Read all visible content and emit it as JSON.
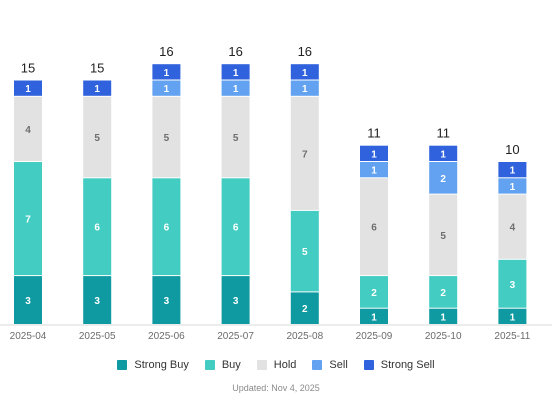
{
  "chart_data": {
    "type": "bar",
    "stacked": true,
    "categories": [
      "2025-04",
      "2025-05",
      "2025-06",
      "2025-07",
      "2025-08",
      "2025-09",
      "2025-10",
      "2025-11"
    ],
    "totals": [
      15,
      15,
      16,
      16,
      16,
      11,
      11,
      10
    ],
    "series": [
      {
        "name": "Strong Buy",
        "color": "#0e9aa0",
        "label_color": "#ffffff",
        "values": [
          3,
          3,
          3,
          3,
          2,
          1,
          1,
          1
        ]
      },
      {
        "name": "Buy",
        "color": "#43ccc2",
        "label_color": "#ffffff",
        "values": [
          7,
          6,
          6,
          6,
          5,
          2,
          2,
          3
        ]
      },
      {
        "name": "Hold",
        "color": "#e2e2e2",
        "label_color": "#6e6e6e",
        "values": [
          4,
          5,
          5,
          5,
          7,
          6,
          5,
          4
        ]
      },
      {
        "name": "Sell",
        "color": "#62a2f0",
        "label_color": "#ffffff",
        "values": [
          0,
          0,
          1,
          1,
          1,
          1,
          2,
          1
        ]
      },
      {
        "name": "Strong Sell",
        "color": "#2f62dc",
        "label_color": "#ffffff",
        "values": [
          1,
          1,
          1,
          1,
          1,
          1,
          1,
          1
        ]
      }
    ],
    "ylim": [
      0,
      16
    ],
    "grid": false,
    "legend_position": "bottom"
  },
  "footer": {
    "updated": "Updated: Nov 4, 2025"
  }
}
